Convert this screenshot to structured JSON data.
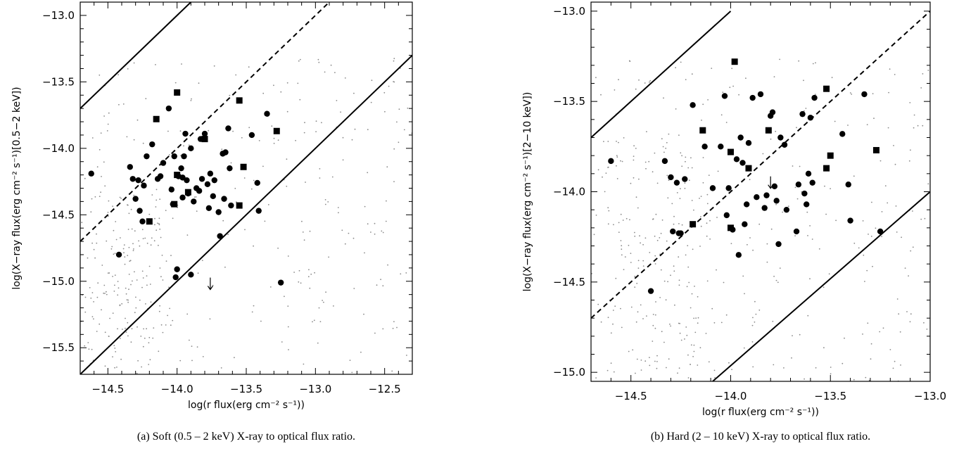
{
  "chart_data": [
    {
      "type": "scatter",
      "caption": "(a) Soft (0.5 – 2 keV) X-ray to optical flux ratio.",
      "xlabel": "log(r flux(erg cm⁻² s⁻¹))",
      "ylabel": "log(X−ray flux(erg cm⁻² s⁻¹)[0.5−2 keV])",
      "xlim": [
        -14.7,
        -12.3
      ],
      "ylim": [
        -15.7,
        -12.9
      ],
      "xticks": [
        -14.5,
        -14.0,
        -13.5,
        -13.0,
        -12.5
      ],
      "xtick_labels": [
        "−14.5",
        "−14.0",
        "−13.5",
        "−13.0",
        "−12.5"
      ],
      "yticks": [
        -15.5,
        -15.0,
        -14.5,
        -14.0,
        -13.5,
        -13.0
      ],
      "ytick_labels": [
        "−15.5",
        "−15.0",
        "−14.5",
        "−14.0",
        "−13.5",
        "−13.0"
      ],
      "grid": false,
      "lines": [
        {
          "style": "solid",
          "x": [
            -14.7,
            -13.9
          ],
          "y": [
            -13.7,
            -12.9
          ]
        },
        {
          "style": "dashed",
          "x": [
            -14.7,
            -12.9
          ],
          "y": [
            -14.7,
            -12.9
          ]
        },
        {
          "style": "solid",
          "x": [
            -14.7,
            -12.3
          ],
          "y": [
            -15.7,
            -13.3
          ]
        }
      ],
      "series": [
        {
          "marker": "circle",
          "points": [
            [
              -14.62,
              -14.19
            ],
            [
              -14.42,
              -14.8
            ],
            [
              -14.34,
              -14.14
            ],
            [
              -14.32,
              -14.23
            ],
            [
              -14.3,
              -14.38
            ],
            [
              -14.28,
              -14.24
            ],
            [
              -14.27,
              -14.47
            ],
            [
              -14.25,
              -14.55
            ],
            [
              -14.24,
              -14.28
            ],
            [
              -14.22,
              -14.06
            ],
            [
              -14.18,
              -13.97
            ],
            [
              -14.14,
              -14.23
            ],
            [
              -14.12,
              -14.21
            ],
            [
              -14.1,
              -14.11
            ],
            [
              -14.06,
              -13.7
            ],
            [
              -14.04,
              -14.31
            ],
            [
              -14.03,
              -14.42
            ],
            [
              -14.02,
              -14.06
            ],
            [
              -13.99,
              -14.21
            ],
            [
              -13.97,
              -14.15
            ],
            [
              -13.96,
              -14.22
            ],
            [
              -13.96,
              -14.37
            ],
            [
              -13.95,
              -14.06
            ],
            [
              -13.94,
              -13.89
            ],
            [
              -13.93,
              -14.24
            ],
            [
              -13.92,
              -14.34
            ],
            [
              -13.9,
              -14.0
            ],
            [
              -13.88,
              -14.4
            ],
            [
              -13.86,
              -14.3
            ],
            [
              -13.84,
              -14.32
            ],
            [
              -13.83,
              -13.93
            ],
            [
              -13.82,
              -14.23
            ],
            [
              -13.8,
              -13.89
            ],
            [
              -13.78,
              -14.27
            ],
            [
              -13.77,
              -14.45
            ],
            [
              -13.76,
              -14.19
            ],
            [
              -13.74,
              -14.36
            ],
            [
              -13.73,
              -14.24
            ],
            [
              -13.7,
              -14.48
            ],
            [
              -13.69,
              -14.66
            ],
            [
              -13.67,
              -14.04
            ],
            [
              -13.66,
              -14.38
            ],
            [
              -13.65,
              -14.03
            ],
            [
              -13.63,
              -13.85
            ],
            [
              -13.62,
              -14.15
            ],
            [
              -13.61,
              -14.43
            ],
            [
              -13.46,
              -13.9
            ],
            [
              -13.42,
              -14.26
            ],
            [
              -13.41,
              -14.47
            ],
            [
              -13.35,
              -13.74
            ],
            [
              -13.25,
              -15.01
            ],
            [
              -14.01,
              -14.97
            ],
            [
              -14.0,
              -14.91
            ],
            [
              -13.9,
              -14.95
            ]
          ]
        },
        {
          "marker": "square",
          "points": [
            [
              -14.15,
              -13.78
            ],
            [
              -14.2,
              -14.55
            ],
            [
              -14.02,
              -14.42
            ],
            [
              -14.0,
              -13.58
            ],
            [
              -14.0,
              -14.2
            ],
            [
              -13.92,
              -14.33
            ],
            [
              -13.8,
              -13.93
            ],
            [
              -13.55,
              -13.64
            ],
            [
              -13.52,
              -14.14
            ],
            [
              -13.55,
              -14.43
            ],
            [
              -13.28,
              -13.87
            ]
          ]
        },
        {
          "marker": "upper-limit-arrow",
          "points": [
            [
              -13.76,
              -15.02
            ]
          ]
        }
      ]
    },
    {
      "type": "scatter",
      "caption": "(b) Hard (2 – 10 keV) X-ray to optical flux ratio.",
      "xlabel": "log(r flux(erg cm⁻² s⁻¹))",
      "ylabel": "log(X−ray flux(erg cm⁻² s⁻¹)[2−10 keV])",
      "xlim": [
        -14.7,
        -13.0
      ],
      "ylim": [
        -15.05,
        -12.95
      ],
      "xticks": [
        -14.5,
        -14.0,
        -13.5,
        -13.0
      ],
      "xtick_labels": [
        "−14.5",
        "−14.0",
        "−13.5",
        "−13.0"
      ],
      "yticks": [
        -15.0,
        -14.5,
        -14.0,
        -13.5,
        -13.0
      ],
      "ytick_labels": [
        "−15.0",
        "−14.5",
        "−14.0",
        "−13.5",
        "−13.0"
      ],
      "grid": false,
      "lines": [
        {
          "style": "solid",
          "x": [
            -14.7,
            -14.0
          ],
          "y": [
            -13.7,
            -13.0
          ]
        },
        {
          "style": "dashed",
          "x": [
            -14.7,
            -13.0
          ],
          "y": [
            -14.7,
            -13.0
          ]
        },
        {
          "style": "solid",
          "x": [
            -14.09,
            -13.0
          ],
          "y": [
            -15.05,
            -14.0
          ]
        }
      ],
      "series": [
        {
          "marker": "circle",
          "points": [
            [
              -14.6,
              -13.83
            ],
            [
              -14.4,
              -14.55
            ],
            [
              -14.33,
              -13.83
            ],
            [
              -14.3,
              -13.92
            ],
            [
              -14.29,
              -14.22
            ],
            [
              -14.27,
              -13.95
            ],
            [
              -14.26,
              -14.23
            ],
            [
              -14.25,
              -14.23
            ],
            [
              -14.23,
              -13.93
            ],
            [
              -14.19,
              -13.52
            ],
            [
              -14.13,
              -13.75
            ],
            [
              -14.09,
              -13.98
            ],
            [
              -14.05,
              -13.75
            ],
            [
              -14.03,
              -13.47
            ],
            [
              -14.02,
              -14.13
            ],
            [
              -14.01,
              -13.98
            ],
            [
              -13.99,
              -14.21
            ],
            [
              -13.97,
              -13.82
            ],
            [
              -13.96,
              -14.35
            ],
            [
              -13.95,
              -13.7
            ],
            [
              -13.94,
              -13.84
            ],
            [
              -13.93,
              -14.18
            ],
            [
              -13.92,
              -14.07
            ],
            [
              -13.91,
              -13.73
            ],
            [
              -13.89,
              -13.48
            ],
            [
              -13.87,
              -14.03
            ],
            [
              -13.85,
              -13.46
            ],
            [
              -13.83,
              -14.09
            ],
            [
              -13.82,
              -14.02
            ],
            [
              -13.8,
              -13.58
            ],
            [
              -13.79,
              -13.56
            ],
            [
              -13.78,
              -13.97
            ],
            [
              -13.77,
              -14.05
            ],
            [
              -13.76,
              -14.29
            ],
            [
              -13.75,
              -13.7
            ],
            [
              -13.73,
              -13.74
            ],
            [
              -13.72,
              -14.1
            ],
            [
              -13.67,
              -14.22
            ],
            [
              -13.66,
              -13.96
            ],
            [
              -13.64,
              -13.57
            ],
            [
              -13.63,
              -14.01
            ],
            [
              -13.62,
              -14.07
            ],
            [
              -13.61,
              -13.9
            ],
            [
              -13.6,
              -13.59
            ],
            [
              -13.59,
              -13.95
            ],
            [
              -13.58,
              -13.48
            ],
            [
              -13.44,
              -13.68
            ],
            [
              -13.41,
              -13.96
            ],
            [
              -13.4,
              -14.16
            ],
            [
              -13.33,
              -13.46
            ],
            [
              -13.25,
              -14.22
            ]
          ]
        },
        {
          "marker": "square",
          "points": [
            [
              -14.14,
              -13.66
            ],
            [
              -14.19,
              -14.18
            ],
            [
              -14.0,
              -13.78
            ],
            [
              -14.0,
              -14.2
            ],
            [
              -13.98,
              -13.28
            ],
            [
              -13.91,
              -13.87
            ],
            [
              -13.81,
              -13.66
            ],
            [
              -13.52,
              -13.43
            ],
            [
              -13.52,
              -13.87
            ],
            [
              -13.5,
              -13.8
            ],
            [
              -13.27,
              -13.77
            ]
          ]
        },
        {
          "marker": "upper-limit-arrow",
          "points": [
            [
              -13.8,
              -13.95
            ]
          ]
        }
      ]
    }
  ]
}
